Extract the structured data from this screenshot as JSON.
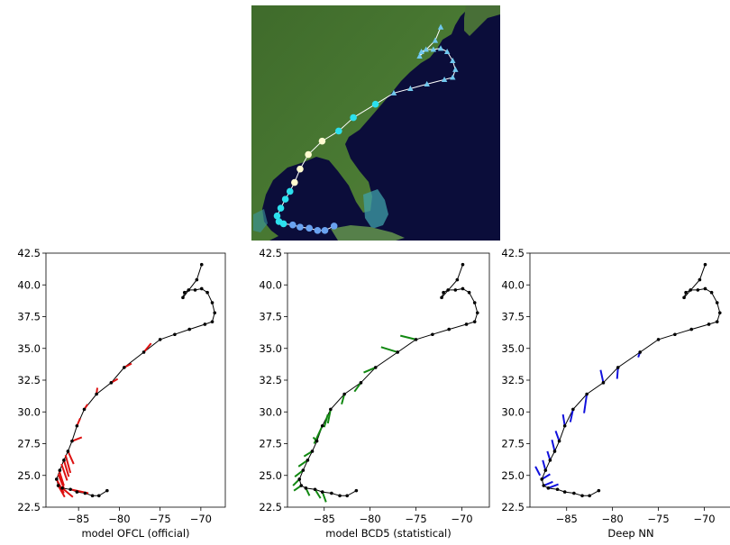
{
  "colors": {
    "ocean": "#0b0d3a",
    "land": "#3d6a2a",
    "ofcl": "#dd1111",
    "bcd5": "#118811",
    "nn": "#1111dd",
    "track": "#000000"
  },
  "map": {
    "track": [
      [
        -81.5,
        23.8
      ],
      [
        -82.5,
        23.4
      ],
      [
        -83.3,
        23.4
      ],
      [
        -84.2,
        23.6
      ],
      [
        -85.2,
        23.7
      ],
      [
        -86.0,
        23.9
      ],
      [
        -87.0,
        24.0
      ],
      [
        -87.5,
        24.2
      ],
      [
        -87.7,
        24.7
      ],
      [
        -87.3,
        25.4
      ],
      [
        -86.8,
        26.2
      ],
      [
        -86.3,
        26.9
      ],
      [
        -85.8,
        27.7
      ],
      [
        -85.2,
        28.9
      ],
      [
        -84.3,
        30.2
      ],
      [
        -82.8,
        31.4
      ],
      [
        -81.0,
        32.3
      ],
      [
        -79.4,
        33.5
      ],
      [
        -77.0,
        34.7
      ],
      [
        -75.0,
        35.7
      ],
      [
        -73.2,
        36.1
      ],
      [
        -71.4,
        36.5
      ],
      [
        -69.5,
        36.9
      ],
      [
        -68.6,
        37.1
      ],
      [
        -68.3,
        37.8
      ],
      [
        -68.6,
        38.6
      ],
      [
        -69.2,
        39.4
      ],
      [
        -69.9,
        39.7
      ],
      [
        -70.7,
        39.6
      ],
      [
        -71.5,
        39.6
      ],
      [
        -72.0,
        39.4
      ],
      [
        -72.2,
        39.0
      ],
      [
        -70.5,
        40.4
      ],
      [
        -69.9,
        41.6
      ]
    ],
    "markers": [
      {
        "category": "hurricane-major",
        "color": "#6aa2f0",
        "shape": "circle"
      },
      {
        "category": "hurricane",
        "color": "#2ce0ee",
        "shape": "circle"
      },
      {
        "category": "tropical-storm",
        "color": "#fffbd0",
        "shape": "circle"
      },
      {
        "category": "extratropical",
        "color": "#70c8ef",
        "shape": "triangle"
      }
    ]
  },
  "chart_data": [
    {
      "type": "line",
      "id": "ofcl",
      "xlabel": "model OFCL (official)",
      "xlim": [
        -89,
        -67
      ],
      "ylim": [
        22.5,
        42.5
      ],
      "xticks": [
        -85,
        -80,
        -75,
        -70
      ],
      "yticks": [
        22.5,
        25.0,
        27.5,
        30.0,
        32.5,
        35.0,
        37.5,
        40.0,
        42.5
      ],
      "track_x": [
        -81.5,
        -82.5,
        -83.3,
        -84.2,
        -85.2,
        -86.0,
        -87.0,
        -87.5,
        -87.7,
        -87.3,
        -86.8,
        -86.3,
        -85.8,
        -85.2,
        -84.3,
        -82.8,
        -81.0,
        -79.4,
        -77.0,
        -75.0,
        -73.2,
        -71.4,
        -69.5,
        -68.6,
        -68.3,
        -68.6,
        -69.2,
        -69.9,
        -70.7,
        -71.5,
        -72.0,
        -72.2,
        -70.5,
        -69.9
      ],
      "track_y": [
        23.8,
        23.4,
        23.4,
        23.6,
        23.7,
        23.9,
        24.0,
        24.2,
        24.7,
        25.4,
        26.2,
        26.9,
        27.7,
        28.9,
        30.2,
        31.4,
        32.3,
        33.5,
        34.7,
        35.7,
        36.1,
        36.5,
        36.9,
        37.1,
        37.8,
        38.6,
        39.4,
        39.7,
        39.6,
        39.6,
        39.4,
        39.0,
        40.4,
        41.6
      ],
      "forecasts": [
        [
          [
            -86.0,
            23.9
          ],
          [
            -83.8,
            23.6
          ]
        ],
        [
          [
            -87.0,
            24.0
          ],
          [
            -85.7,
            23.3
          ]
        ],
        [
          [
            -87.5,
            24.2
          ],
          [
            -86.7,
            23.3
          ]
        ],
        [
          [
            -87.7,
            24.7
          ],
          [
            -86.8,
            23.6
          ]
        ],
        [
          [
            -87.5,
            25.1
          ],
          [
            -86.8,
            24.0
          ]
        ],
        [
          [
            -87.4,
            25.4
          ],
          [
            -86.8,
            24.2
          ]
        ],
        [
          [
            -87.1,
            25.9
          ],
          [
            -86.4,
            24.6
          ]
        ],
        [
          [
            -86.8,
            26.2
          ],
          [
            -86.2,
            24.9
          ]
        ],
        [
          [
            -86.6,
            26.6
          ],
          [
            -86.0,
            25.2
          ]
        ],
        [
          [
            -86.3,
            26.9
          ],
          [
            -85.6,
            25.9
          ]
        ],
        [
          [
            -85.8,
            27.7
          ],
          [
            -84.6,
            28.0
          ]
        ],
        [
          [
            -85.2,
            28.9
          ],
          [
            -84.8,
            29.5
          ]
        ],
        [
          [
            -84.3,
            30.2
          ],
          [
            -83.9,
            30.6
          ]
        ],
        [
          [
            -82.8,
            31.4
          ],
          [
            -82.7,
            31.9
          ]
        ],
        [
          [
            -81.0,
            32.3
          ],
          [
            -80.2,
            32.6
          ]
        ],
        [
          [
            -79.4,
            33.5
          ],
          [
            -78.5,
            33.8
          ]
        ],
        [
          [
            -77.0,
            34.7
          ],
          [
            -76.1,
            35.4
          ]
        ]
      ]
    },
    {
      "type": "line",
      "id": "bcd5",
      "xlabel": "model BCD5 (statistical)",
      "xlim": [
        -89,
        -67
      ],
      "ylim": [
        22.5,
        42.5
      ],
      "xticks": [
        -85,
        -80,
        -75,
        -70
      ],
      "yticks": [
        22.5,
        25.0,
        27.5,
        30.0,
        32.5,
        35.0,
        37.5,
        40.0,
        42.5
      ],
      "track_x": [
        -81.5,
        -82.5,
        -83.3,
        -84.2,
        -85.2,
        -86.0,
        -87.0,
        -87.5,
        -87.7,
        -87.3,
        -86.8,
        -86.3,
        -85.8,
        -85.2,
        -84.3,
        -82.8,
        -81.0,
        -79.4,
        -77.0,
        -75.0,
        -73.2,
        -71.4,
        -69.5,
        -68.6,
        -68.3,
        -68.6,
        -69.2,
        -69.9,
        -70.7,
        -71.5,
        -72.0,
        -72.2,
        -70.5,
        -69.9
      ],
      "track_y": [
        23.8,
        23.4,
        23.4,
        23.6,
        23.7,
        23.9,
        24.0,
        24.2,
        24.7,
        25.4,
        26.2,
        26.9,
        27.7,
        28.9,
        30.2,
        31.4,
        32.3,
        33.5,
        34.7,
        35.7,
        36.1,
        36.5,
        36.9,
        37.1,
        37.8,
        38.6,
        39.4,
        39.7,
        39.6,
        39.6,
        39.4,
        39.0,
        40.4,
        41.6
      ],
      "forecasts": [
        [
          [
            -85.2,
            23.7
          ],
          [
            -84.8,
            22.9
          ]
        ],
        [
          [
            -86.0,
            23.9
          ],
          [
            -85.4,
            23.2
          ]
        ],
        [
          [
            -87.0,
            24.0
          ],
          [
            -86.6,
            23.4
          ]
        ],
        [
          [
            -87.5,
            24.2
          ],
          [
            -88.3,
            23.8
          ]
        ],
        [
          [
            -87.7,
            24.7
          ],
          [
            -88.4,
            24.2
          ]
        ],
        [
          [
            -87.3,
            25.4
          ],
          [
            -88.2,
            24.9
          ]
        ],
        [
          [
            -86.8,
            26.2
          ],
          [
            -87.8,
            25.7
          ]
        ],
        [
          [
            -86.3,
            26.9
          ],
          [
            -87.2,
            26.5
          ]
        ],
        [
          [
            -85.8,
            27.7
          ],
          [
            -86.2,
            28.0
          ]
        ],
        [
          [
            -85.2,
            28.9
          ],
          [
            -86.1,
            27.5
          ]
        ],
        [
          [
            -84.6,
            29.8
          ],
          [
            -85.0,
            28.8
          ]
        ],
        [
          [
            -84.3,
            30.2
          ],
          [
            -84.6,
            29.1
          ]
        ],
        [
          [
            -82.8,
            31.4
          ],
          [
            -83.1,
            30.6
          ]
        ],
        [
          [
            -81.0,
            32.3
          ],
          [
            -81.7,
            31.6
          ]
        ],
        [
          [
            -79.4,
            33.5
          ],
          [
            -80.7,
            33.1
          ]
        ],
        [
          [
            -77.0,
            34.7
          ],
          [
            -78.8,
            35.1
          ]
        ],
        [
          [
            -75.0,
            35.7
          ],
          [
            -76.7,
            36.0
          ]
        ]
      ]
    },
    {
      "type": "line",
      "id": "nn",
      "xlabel": "Deep NN",
      "xlim": [
        -89,
        -67
      ],
      "ylim": [
        22.5,
        42.5
      ],
      "xticks": [
        -85,
        -80,
        -75,
        -70
      ],
      "yticks": [
        22.5,
        25.0,
        27.5,
        30.0,
        32.5,
        35.0,
        37.5,
        40.0,
        42.5
      ],
      "track_x": [
        -81.5,
        -82.5,
        -83.3,
        -84.2,
        -85.2,
        -86.0,
        -87.0,
        -87.5,
        -87.7,
        -87.3,
        -86.8,
        -86.3,
        -85.8,
        -85.2,
        -84.3,
        -82.8,
        -81.0,
        -79.4,
        -77.0,
        -75.0,
        -73.2,
        -71.4,
        -69.5,
        -68.6,
        -68.3,
        -68.6,
        -69.2,
        -69.9,
        -70.7,
        -71.5,
        -72.0,
        -72.2,
        -70.5,
        -69.9
      ],
      "track_y": [
        23.8,
        23.4,
        23.4,
        23.6,
        23.7,
        23.9,
        24.0,
        24.2,
        24.7,
        25.4,
        26.2,
        26.9,
        27.7,
        28.9,
        30.2,
        31.4,
        32.3,
        33.5,
        34.7,
        35.7,
        36.1,
        36.5,
        36.9,
        37.1,
        37.8,
        38.6,
        39.4,
        39.7,
        39.6,
        39.6,
        39.4,
        39.0,
        40.4,
        41.6
      ],
      "forecasts": [
        [
          [
            -87.0,
            24.0
          ],
          [
            -85.9,
            24.3
          ]
        ],
        [
          [
            -87.5,
            24.2
          ],
          [
            -86.5,
            24.5
          ]
        ],
        [
          [
            -87.7,
            24.7
          ],
          [
            -86.8,
            25.1
          ]
        ],
        [
          [
            -87.9,
            25.0
          ],
          [
            -88.4,
            25.7
          ]
        ],
        [
          [
            -87.3,
            25.4
          ],
          [
            -87.6,
            26.2
          ]
        ],
        [
          [
            -86.8,
            26.2
          ],
          [
            -87.1,
            26.9
          ]
        ],
        [
          [
            -86.3,
            26.9
          ],
          [
            -86.6,
            27.8
          ]
        ],
        [
          [
            -85.8,
            27.7
          ],
          [
            -86.2,
            28.5
          ]
        ],
        [
          [
            -85.2,
            28.9
          ],
          [
            -85.4,
            29.8
          ]
        ],
        [
          [
            -84.3,
            30.2
          ],
          [
            -84.6,
            29.2
          ]
        ],
        [
          [
            -82.8,
            31.4
          ],
          [
            -83.1,
            29.9
          ]
        ],
        [
          [
            -81.0,
            32.3
          ],
          [
            -81.3,
            33.3
          ]
        ],
        [
          [
            -79.4,
            33.5
          ],
          [
            -79.5,
            32.6
          ]
        ],
        [
          [
            -77.0,
            34.7
          ],
          [
            -77.2,
            34.3
          ]
        ]
      ]
    }
  ]
}
